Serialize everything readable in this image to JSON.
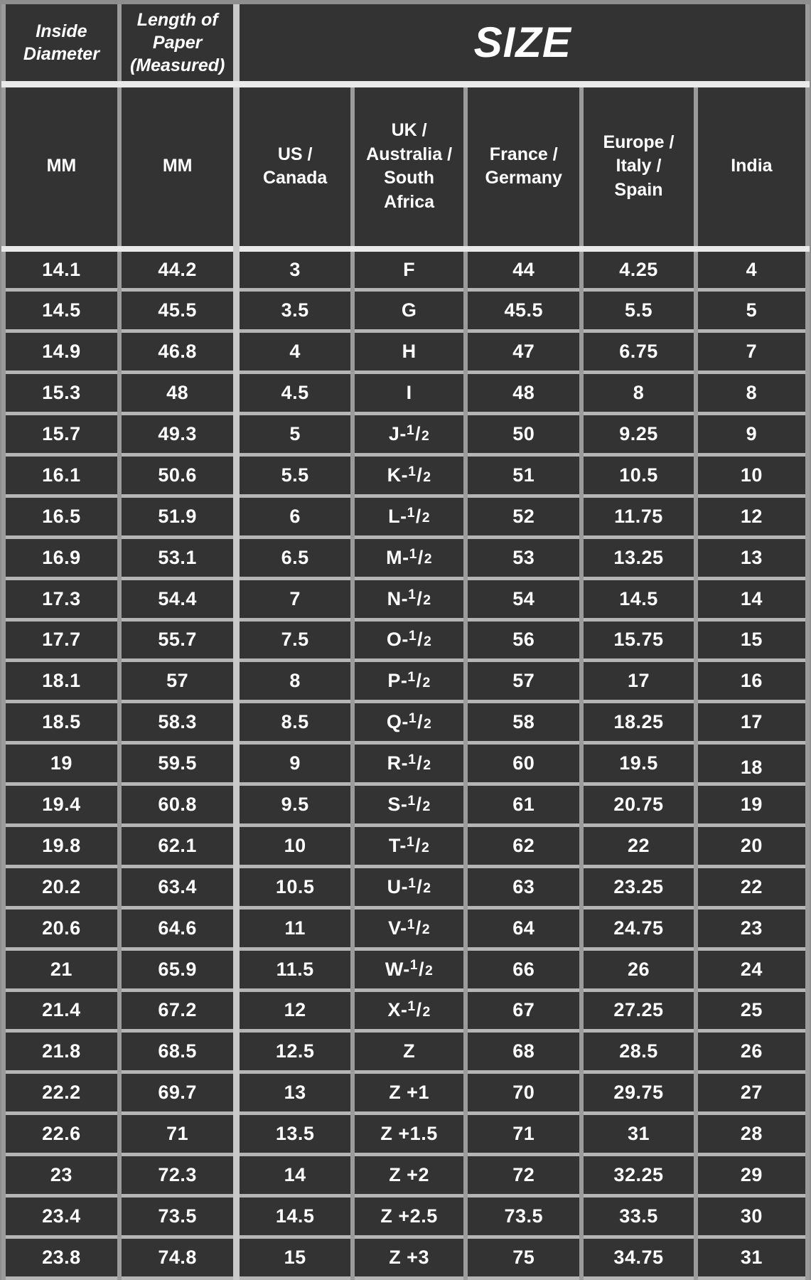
{
  "chart_data": {
    "type": "table",
    "title": "SIZE",
    "header_row1": [
      "Inside Diameter",
      "Length of Paper (Measured)",
      "SIZE"
    ],
    "header_row2": [
      "MM",
      "MM",
      "US / Canada",
      "UK / Australia / South Africa",
      "France / Germany",
      "Europe / Italy / Spain",
      "India"
    ],
    "column_keys": [
      "inside-diameter-mm",
      "paper-length-mm",
      "us-canada",
      "uk-australia-south-africa",
      "france-germany",
      "europe-italy-spain",
      "india"
    ],
    "rows": [
      [
        "14.1",
        "44.2",
        "3",
        "F",
        "44",
        "4.25",
        "4"
      ],
      [
        "14.5",
        "45.5",
        "3.5",
        "G",
        "45.5",
        "5.5",
        "5"
      ],
      [
        "14.9",
        "46.8",
        "4",
        "H",
        "47",
        "6.75",
        "7"
      ],
      [
        "15.3",
        "48",
        "4.5",
        "I",
        "48",
        "8",
        "8"
      ],
      [
        "15.7",
        "49.3",
        "5",
        "J-1/2",
        "50",
        "9.25",
        "9"
      ],
      [
        "16.1",
        "50.6",
        "5.5",
        "K-1/2",
        "51",
        "10.5",
        "10"
      ],
      [
        "16.5",
        "51.9",
        "6",
        "L-1/2",
        "52",
        "11.75",
        "12"
      ],
      [
        "16.9",
        "53.1",
        "6.5",
        "M-1/2",
        "53",
        "13.25",
        "13"
      ],
      [
        "17.3",
        "54.4",
        "7",
        "N-1/2",
        "54",
        "14.5",
        "14"
      ],
      [
        "17.7",
        "55.7",
        "7.5",
        "O-1/2",
        "56",
        "15.75",
        "15"
      ],
      [
        "18.1",
        "57",
        "8",
        "P-1/2",
        "57",
        "17",
        "16"
      ],
      [
        "18.5",
        "58.3",
        "8.5",
        "Q-1/2",
        "58",
        "18.25",
        "17"
      ],
      [
        "19",
        "59.5",
        "9",
        "R-1/2",
        "60",
        "19.5",
        "18"
      ],
      [
        "19.4",
        "60.8",
        "9.5",
        "S-1/2",
        "61",
        "20.75",
        "19"
      ],
      [
        "19.8",
        "62.1",
        "10",
        "T-1/2",
        "62",
        "22",
        "20"
      ],
      [
        "20.2",
        "63.4",
        "10.5",
        "U-1/2",
        "63",
        "23.25",
        "22"
      ],
      [
        "20.6",
        "64.6",
        "11",
        "V-1/2",
        "64",
        "24.75",
        "23"
      ],
      [
        "21",
        "65.9",
        "11.5",
        "W-1/2",
        "66",
        "26",
        "24"
      ],
      [
        "21.4",
        "67.2",
        "12",
        "X-1/2",
        "67",
        "27.25",
        "25"
      ],
      [
        "21.8",
        "68.5",
        "12.5",
        "Z",
        "68",
        "28.5",
        "26"
      ],
      [
        "22.2",
        "69.7",
        "13",
        "Z +1",
        "70",
        "29.75",
        "27"
      ],
      [
        "22.6",
        "71",
        "13.5",
        "Z +1.5",
        "71",
        "31",
        "28"
      ],
      [
        "23",
        "72.3",
        "14",
        "Z +2",
        "72",
        "32.25",
        "29"
      ],
      [
        "23.4",
        "73.5",
        "14.5",
        "Z +2.5",
        "73.5",
        "33.5",
        "30"
      ],
      [
        "23.8",
        "74.8",
        "15",
        "Z +3",
        "75",
        "34.75",
        "31"
      ]
    ],
    "quirks": {
      "lowered_cell": {
        "row_index": 12,
        "col_index": 6
      }
    },
    "colors": {
      "cell_bg": "#333333",
      "vertical_border": "#9b9b9b",
      "horizontal_border": "#b5b5b5",
      "separator": "#e9e9e9",
      "outer_frame": "#8e8e8e",
      "text": "#ffffff"
    }
  }
}
